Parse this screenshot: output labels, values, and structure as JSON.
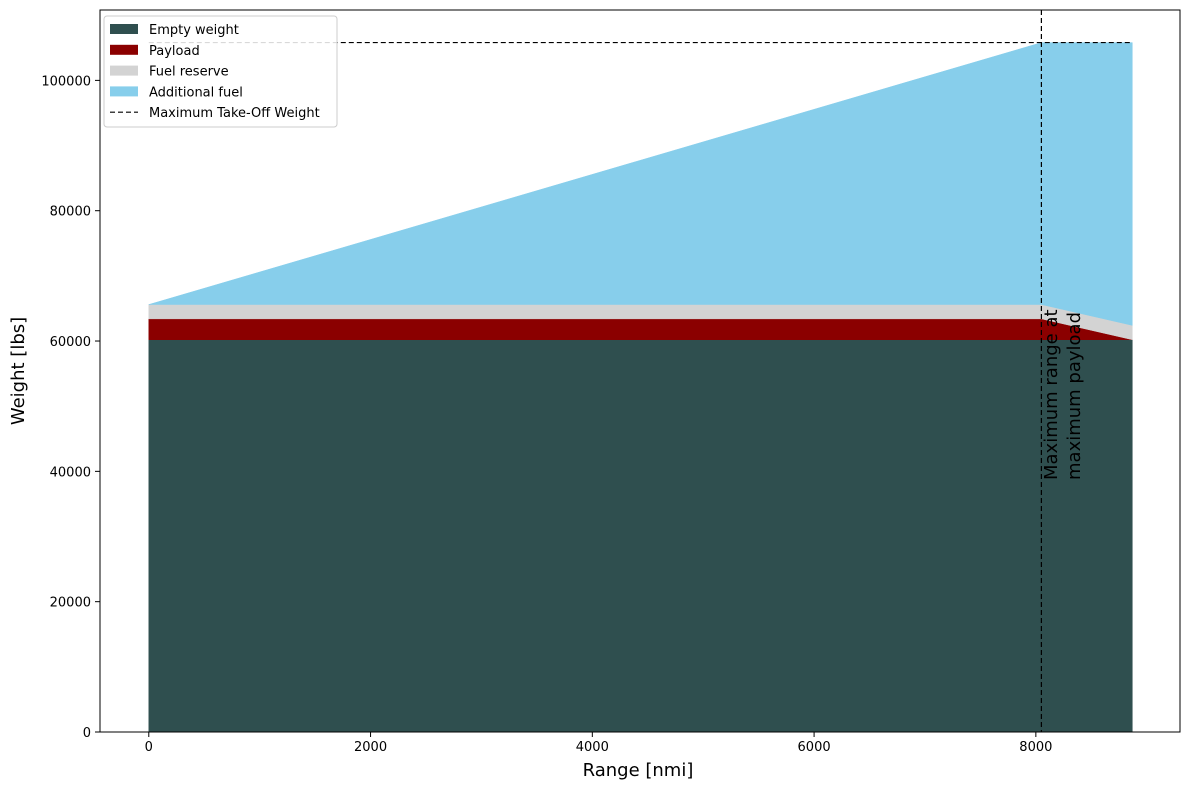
{
  "chart_data": {
    "type": "area",
    "xlabel": "Range [nmi]",
    "ylabel": "Weight [lbs]",
    "xlim": [
      -440,
      9300
    ],
    "ylim": [
      0,
      110800
    ],
    "x_ticks": [
      0,
      2000,
      4000,
      6000,
      8000
    ],
    "y_ticks": [
      0,
      20000,
      40000,
      60000,
      80000,
      100000
    ],
    "x_tick_labels": [
      "0",
      "2000",
      "4000",
      "6000",
      "8000"
    ],
    "y_tick_labels": [
      "0",
      "20000",
      "40000",
      "60000",
      "80000",
      "100000"
    ],
    "x": [
      0,
      8050,
      8870
    ],
    "series": [
      {
        "name": "Empty weight",
        "color": "#2f4f4f",
        "values": [
          60200,
          60200,
          60200
        ]
      },
      {
        "name": "Payload",
        "color": "#8b0000",
        "values": [
          3200,
          3200,
          0
        ]
      },
      {
        "name": "Fuel reserve",
        "color": "#d3d3d3",
        "values": [
          2200,
          2200,
          2200
        ]
      },
      {
        "name": "Additional fuel",
        "color": "#87ceeb",
        "values": [
          0,
          40200,
          43400
        ]
      }
    ],
    "mtow": {
      "name": "Maximum Take-Off Weight",
      "value": 105800,
      "x_range": [
        0,
        8870
      ],
      "color": "#000000"
    },
    "vline": {
      "x": 8050,
      "label_line1": "Maximum range at",
      "label_line2": "maximum payload"
    },
    "legend_position": "top-left",
    "grid": false
  }
}
